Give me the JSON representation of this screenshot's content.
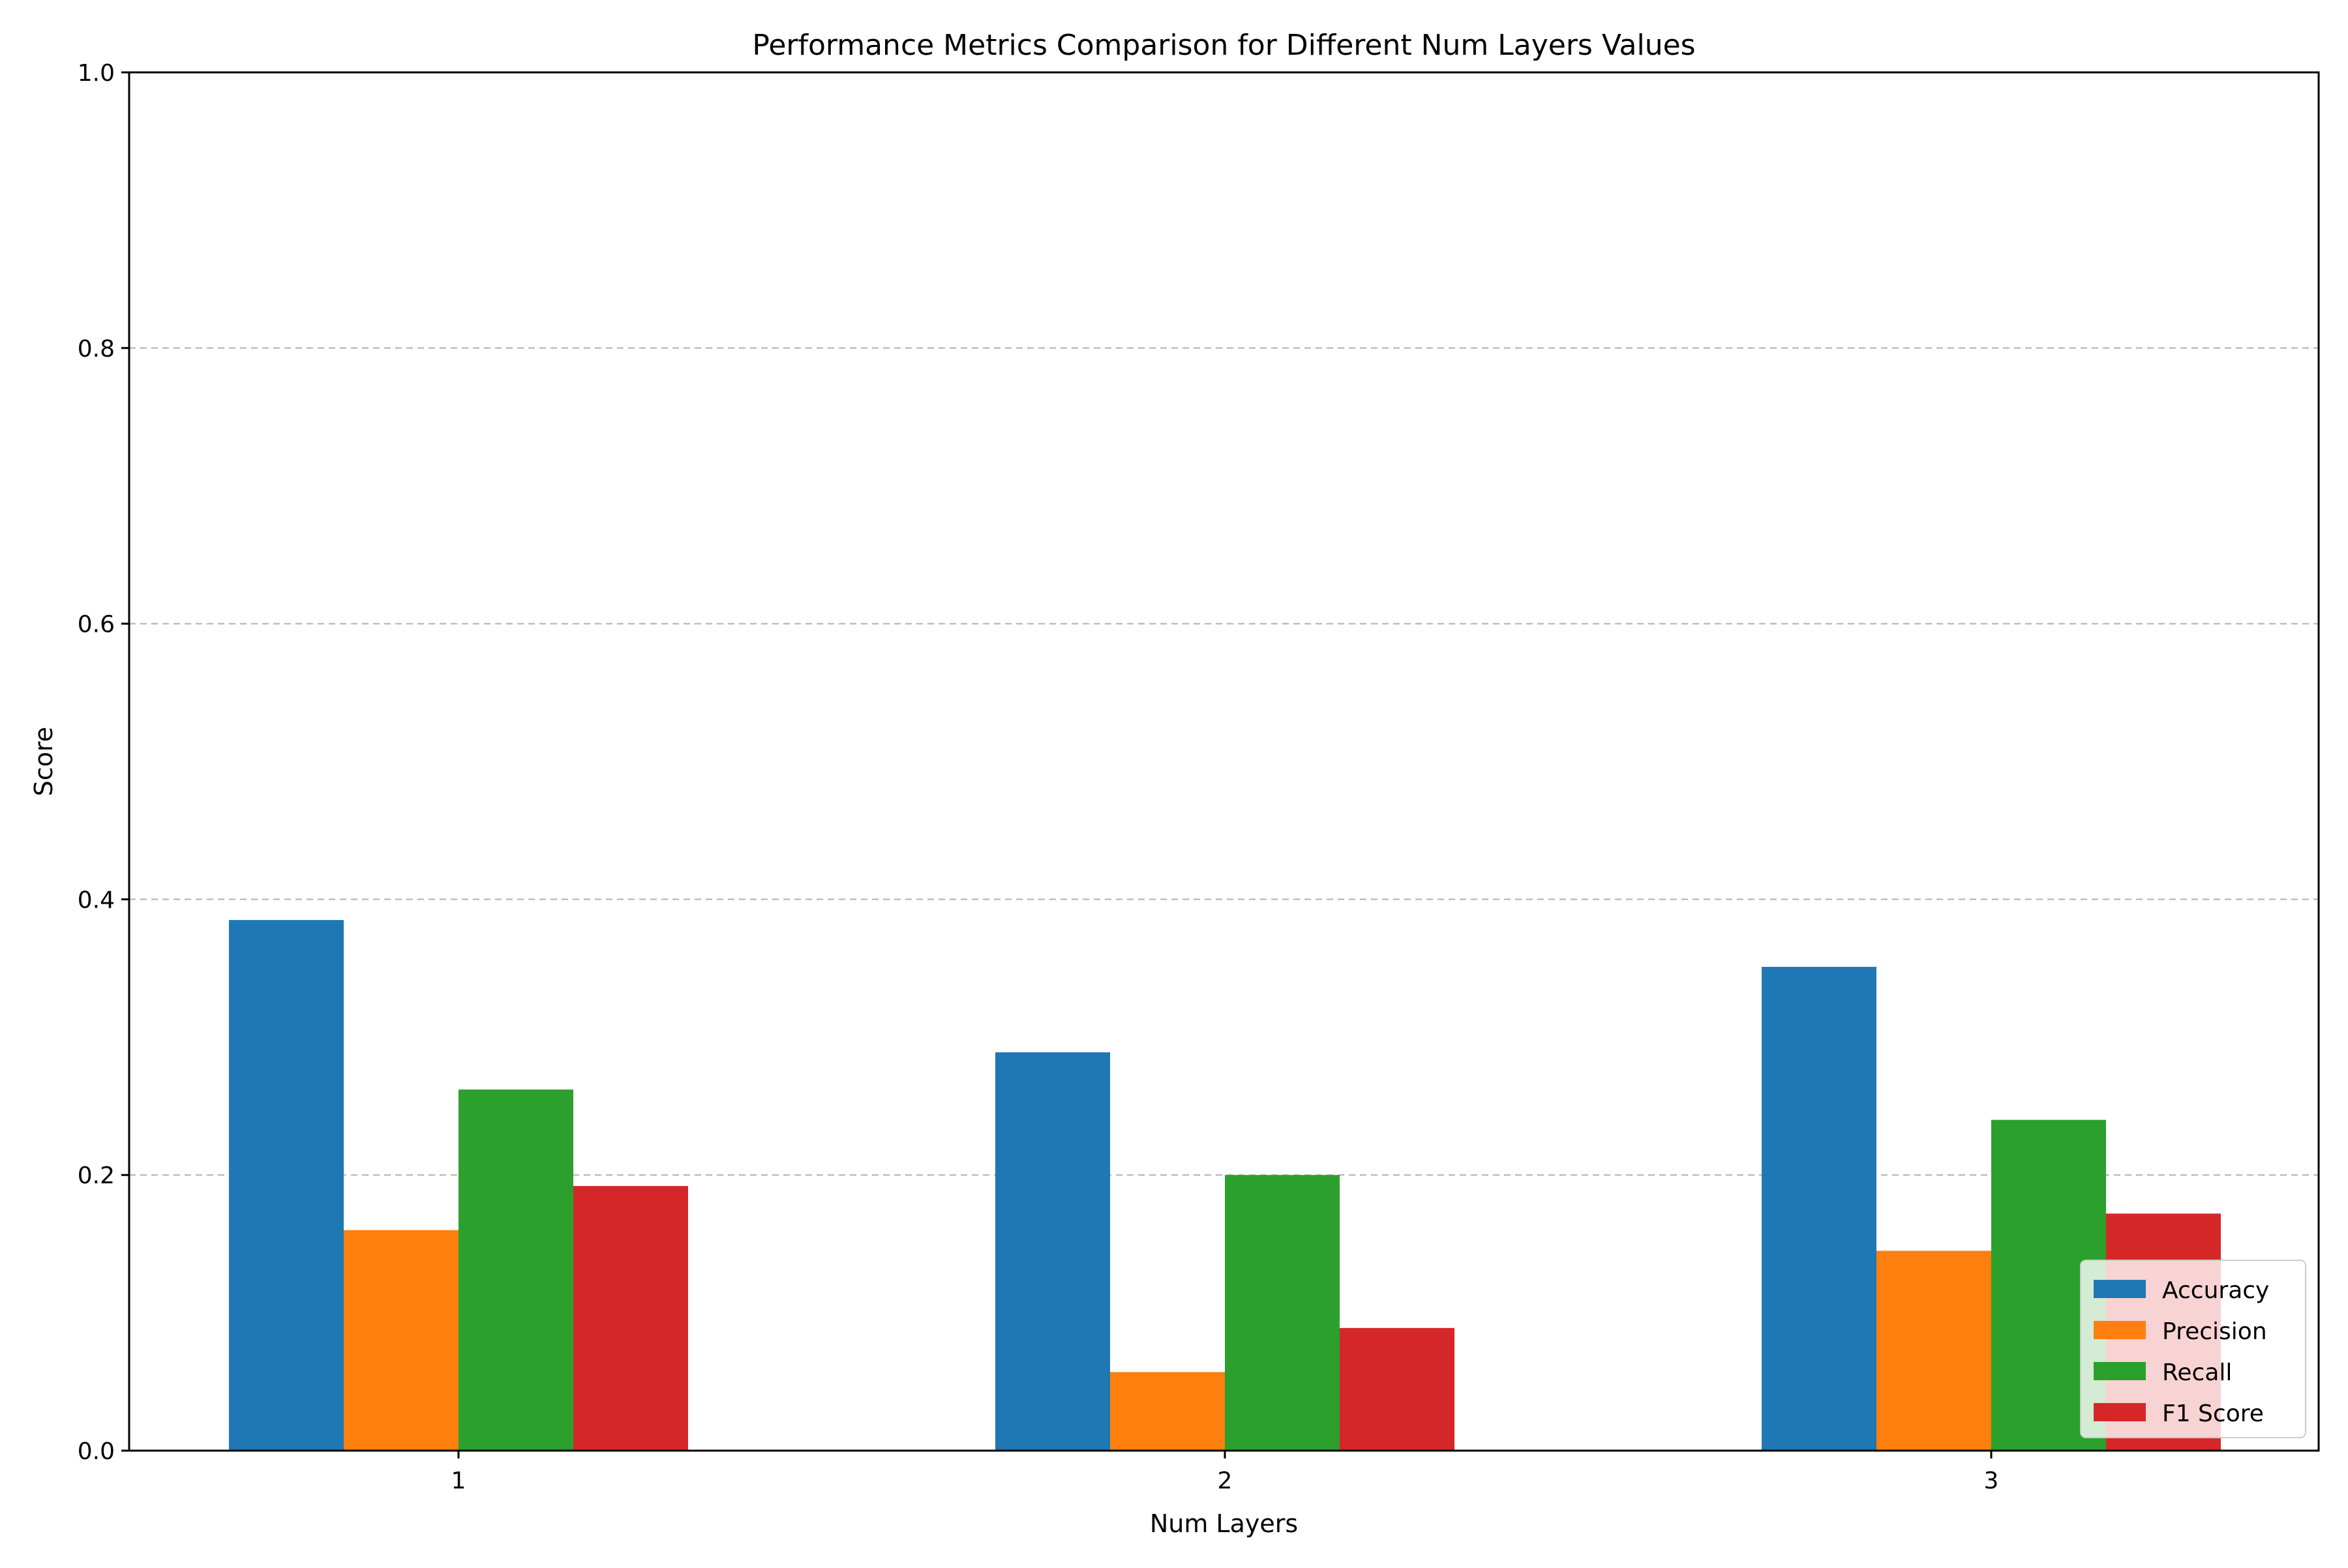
{
  "chart_data": {
    "type": "bar",
    "title": "Performance Metrics Comparison for Different Num Layers Values",
    "xlabel": "Num Layers",
    "ylabel": "Score",
    "categories": [
      "1",
      "2",
      "3"
    ],
    "ylim": [
      0,
      1.0
    ],
    "yticks": [
      "0.0",
      "0.2",
      "0.4",
      "0.6",
      "0.8",
      "1.0"
    ],
    "grid": "y-dashed",
    "legend_position": "bottom-right",
    "series": [
      {
        "name": "Accuracy",
        "color": "#1f77b4",
        "values": [
          0.385,
          0.289,
          0.351
        ]
      },
      {
        "name": "Precision",
        "color": "#ff7f0e",
        "values": [
          0.16,
          0.057,
          0.145
        ]
      },
      {
        "name": "Recall",
        "color": "#2ca02c",
        "values": [
          0.262,
          0.2,
          0.24
        ]
      },
      {
        "name": "F1 Score",
        "color": "#d62728",
        "values": [
          0.192,
          0.089,
          0.172
        ]
      }
    ]
  }
}
